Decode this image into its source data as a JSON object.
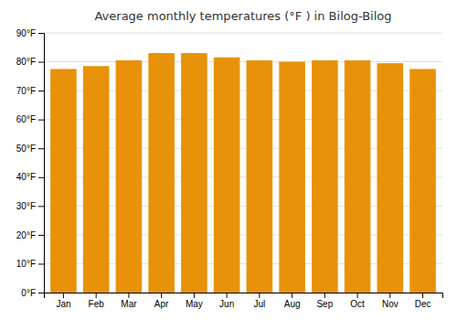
{
  "chart_data": {
    "type": "bar",
    "title": "Average monthly temperatures (°F ) in Bilog-Bilog",
    "categories": [
      "Jan",
      "Feb",
      "Mar",
      "Apr",
      "May",
      "Jun",
      "Jul",
      "Aug",
      "Sep",
      "Oct",
      "Nov",
      "Dec"
    ],
    "values": [
      77.5,
      78.5,
      80.5,
      83.0,
      83.0,
      81.5,
      80.5,
      80.0,
      80.5,
      80.5,
      79.5,
      77.5
    ],
    "color": "#E8920A",
    "ylim": [
      0,
      90
    ],
    "yticks": [
      {
        "value": 0,
        "label": "0°F"
      },
      {
        "value": 10,
        "label": "10°F"
      },
      {
        "value": 20,
        "label": "20°F"
      },
      {
        "value": 30,
        "label": "30°F"
      },
      {
        "value": 40,
        "label": "40°F"
      },
      {
        "value": 50,
        "label": "50°F"
      },
      {
        "value": 60,
        "label": "60°F"
      },
      {
        "value": 70,
        "label": "70°F"
      },
      {
        "value": 80,
        "label": "80°F"
      },
      {
        "value": 90,
        "label": "90°F"
      }
    ],
    "grid": true
  }
}
